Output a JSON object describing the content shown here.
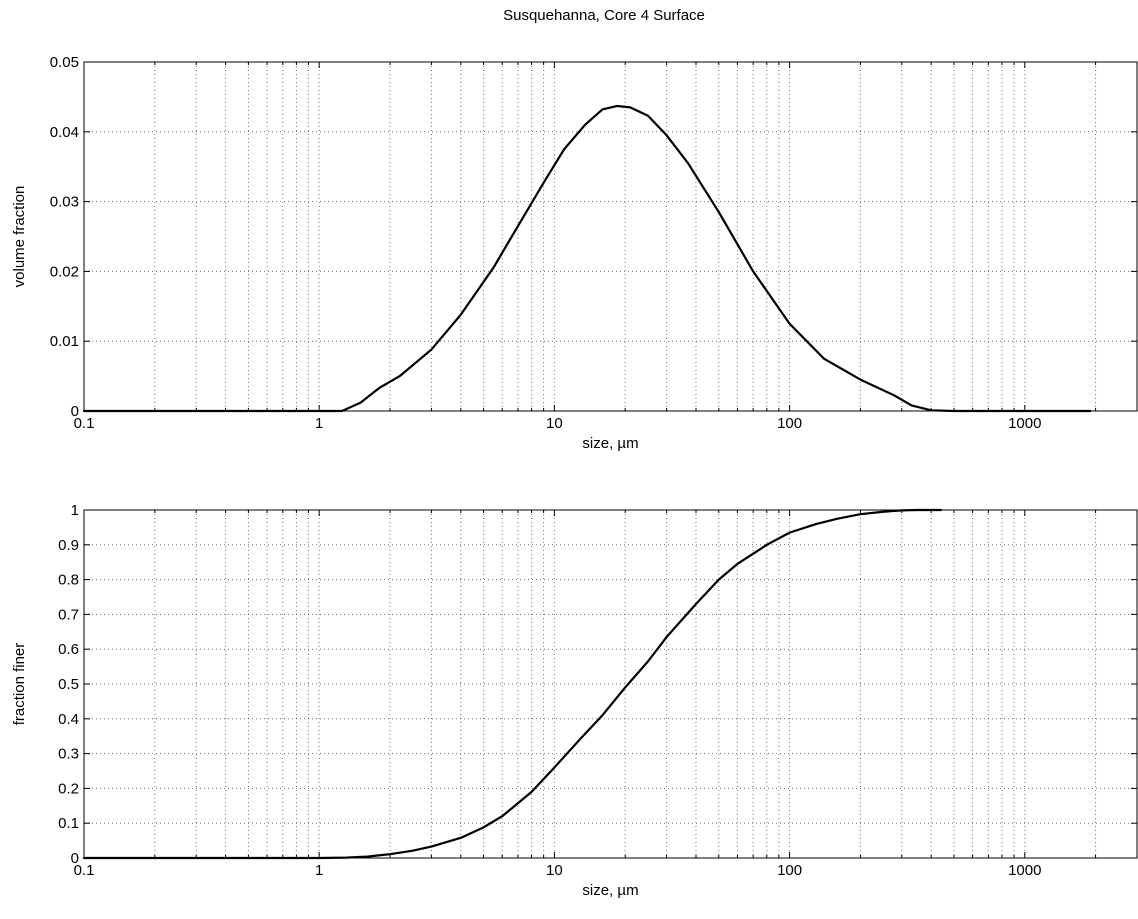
{
  "figure_title": "Susquehanna, Core 4 Surface",
  "chart_data": [
    {
      "type": "line",
      "title": "Susquehanna, Core 4 Surface",
      "xlabel": "size, µm",
      "ylabel": "volume fraction",
      "xscale": "log",
      "xlim": [
        0.1,
        3000
      ],
      "ylim": [
        0,
        0.05
      ],
      "grid": true,
      "xticks": [
        0.1,
        1,
        10,
        100,
        1000
      ],
      "xtick_labels": [
        "0.1",
        "1",
        "10",
        "100",
        "1000"
      ],
      "yticks": [
        0,
        0.01,
        0.02,
        0.03,
        0.04,
        0.05
      ],
      "ytick_labels": [
        "0",
        "0.01",
        "0.02",
        "0.03",
        "0.04",
        "0.05"
      ],
      "series": [
        {
          "color": "#000000",
          "x": [
            0.1,
            1.0,
            1.25,
            1.5,
            1.8,
            2.2,
            3.0,
            4.0,
            5.5,
            7.0,
            9.0,
            11.0,
            13.5,
            16.0,
            18.5,
            21.0,
            25.0,
            30.0,
            37.0,
            50.0,
            70.0,
            100.0,
            140.0,
            200.0,
            280.0,
            330.0,
            400.0,
            500.0,
            1000.0,
            1900.0
          ],
          "y": [
            0,
            0,
            0,
            0.0012,
            0.0033,
            0.005,
            0.0088,
            0.0138,
            0.0205,
            0.0265,
            0.0327,
            0.0375,
            0.041,
            0.0432,
            0.0437,
            0.0435,
            0.0423,
            0.0395,
            0.0355,
            0.0285,
            0.02,
            0.0125,
            0.0075,
            0.0045,
            0.0022,
            0.0008,
            0.0001,
            0,
            0,
            0
          ]
        }
      ]
    },
    {
      "type": "line",
      "title": "",
      "xlabel": "size, µm",
      "ylabel": "fraction finer",
      "xscale": "log",
      "xlim": [
        0.1,
        3000
      ],
      "ylim": [
        0,
        1
      ],
      "grid": true,
      "xticks": [
        0.1,
        1,
        10,
        100,
        1000
      ],
      "xtick_labels": [
        "0.1",
        "1",
        "10",
        "100",
        "1000"
      ],
      "yticks": [
        0,
        0.1,
        0.2,
        0.3,
        0.4,
        0.5,
        0.6,
        0.7,
        0.8,
        0.9,
        1
      ],
      "ytick_labels": [
        "0",
        "0.1",
        "0.2",
        "0.3",
        "0.4",
        "0.5",
        "0.6",
        "0.7",
        "0.8",
        "0.9",
        "1"
      ],
      "series": [
        {
          "color": "#000000",
          "x": [
            0.1,
            1.0,
            1.3,
            1.6,
            2.0,
            2.5,
            3.0,
            4.0,
            5.0,
            6.0,
            8.0,
            10.0,
            13.0,
            16.0,
            20.0,
            25.0,
            30.0,
            40.0,
            50.0,
            60.0,
            80.0,
            100.0,
            130.0,
            160.0,
            200.0,
            250.0,
            300.0,
            350.0,
            440.0
          ],
          "y": [
            0,
            0,
            0.001,
            0.004,
            0.011,
            0.021,
            0.033,
            0.058,
            0.088,
            0.12,
            0.19,
            0.26,
            0.345,
            0.41,
            0.49,
            0.565,
            0.635,
            0.73,
            0.8,
            0.845,
            0.9,
            0.935,
            0.96,
            0.975,
            0.988,
            0.995,
            0.999,
            1.0,
            1.0
          ]
        }
      ]
    }
  ]
}
